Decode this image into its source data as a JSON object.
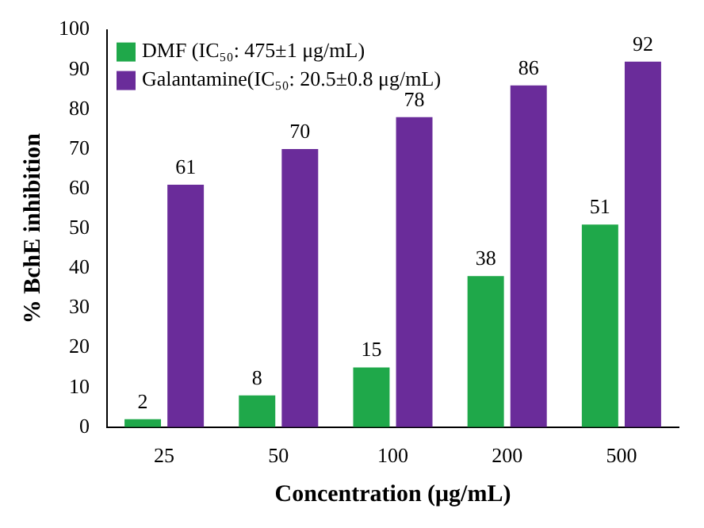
{
  "chart_data": {
    "type": "bar",
    "xlabel": "Concentration (μg/mL)",
    "ylabel": "% BchE inhibition",
    "categories": [
      "25",
      "50",
      "100",
      "200",
      "500"
    ],
    "series": [
      {
        "name": "DMF (IC₅₀: 475±1 μg/mL)",
        "color": "#1fa84a",
        "values": [
          2,
          8,
          15,
          38,
          51
        ]
      },
      {
        "name": "Galantamine(IC₅₀: 20.5±0.8 μg/mL)",
        "color": "#6a2c9a",
        "values": [
          61,
          70,
          78,
          86,
          92
        ]
      }
    ],
    "ylim": [
      0,
      100
    ],
    "yticks": [
      0,
      10,
      20,
      30,
      40,
      50,
      60,
      70,
      80,
      90,
      100
    ],
    "grid": false,
    "legend": "top left",
    "data_labels": true
  }
}
